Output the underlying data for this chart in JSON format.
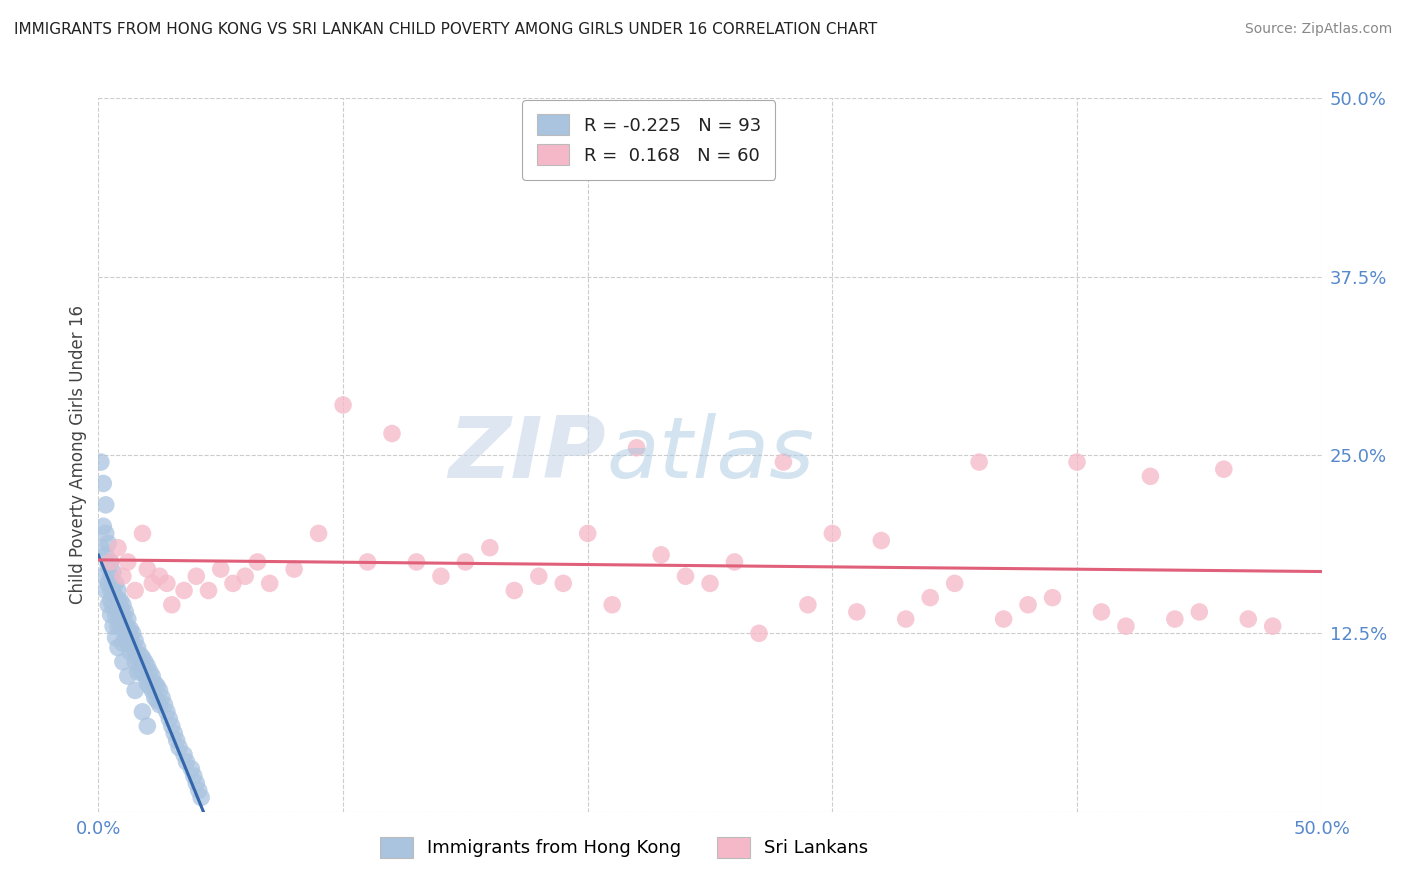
{
  "title": "IMMIGRANTS FROM HONG KONG VS SRI LANKAN CHILD POVERTY AMONG GIRLS UNDER 16 CORRELATION CHART",
  "source": "Source: ZipAtlas.com",
  "ylabel": "Child Poverty Among Girls Under 16",
  "xlim": [
    0,
    0.5
  ],
  "ylim": [
    0,
    0.5
  ],
  "ytick_positions": [
    0.0,
    0.125,
    0.25,
    0.375,
    0.5
  ],
  "xtick_positions": [
    0.0,
    0.1,
    0.2,
    0.3,
    0.4,
    0.5
  ],
  "hk_R": -0.225,
  "hk_N": 93,
  "sl_R": 0.168,
  "sl_N": 60,
  "hk_color": "#aac4df",
  "sl_color": "#f5b8c8",
  "hk_line_color": "#3366aa",
  "sl_line_color": "#e0607a",
  "watermark_zip": "ZIP",
  "watermark_atlas": "atlas",
  "background_color": "#ffffff",
  "grid_color": "#cccccc",
  "legend_label_hk": "Immigrants from Hong Kong",
  "legend_label_sl": "Sri Lankans",
  "axis_label_color": "#5588cc",
  "hk_scatter_x": [
    0.001,
    0.002,
    0.002,
    0.003,
    0.003,
    0.003,
    0.004,
    0.004,
    0.004,
    0.005,
    0.005,
    0.005,
    0.005,
    0.006,
    0.006,
    0.006,
    0.007,
    0.007,
    0.007,
    0.008,
    0.008,
    0.008,
    0.008,
    0.009,
    0.009,
    0.009,
    0.01,
    0.01,
    0.01,
    0.01,
    0.011,
    0.011,
    0.011,
    0.012,
    0.012,
    0.012,
    0.013,
    0.013,
    0.013,
    0.014,
    0.014,
    0.015,
    0.015,
    0.015,
    0.016,
    0.016,
    0.016,
    0.017,
    0.017,
    0.018,
    0.018,
    0.019,
    0.019,
    0.02,
    0.02,
    0.021,
    0.021,
    0.022,
    0.022,
    0.023,
    0.023,
    0.024,
    0.024,
    0.025,
    0.025,
    0.026,
    0.027,
    0.028,
    0.029,
    0.03,
    0.031,
    0.032,
    0.033,
    0.035,
    0.036,
    0.038,
    0.039,
    0.04,
    0.041,
    0.042,
    0.001,
    0.002,
    0.003,
    0.004,
    0.005,
    0.006,
    0.007,
    0.008,
    0.01,
    0.012,
    0.015,
    0.018,
    0.02
  ],
  "hk_scatter_y": [
    0.245,
    0.23,
    0.2,
    0.215,
    0.195,
    0.18,
    0.188,
    0.172,
    0.16,
    0.175,
    0.165,
    0.155,
    0.148,
    0.168,
    0.155,
    0.145,
    0.16,
    0.15,
    0.138,
    0.155,
    0.148,
    0.14,
    0.13,
    0.148,
    0.142,
    0.132,
    0.145,
    0.138,
    0.128,
    0.118,
    0.14,
    0.132,
    0.122,
    0.135,
    0.128,
    0.118,
    0.128,
    0.12,
    0.112,
    0.125,
    0.115,
    0.12,
    0.112,
    0.105,
    0.115,
    0.108,
    0.098,
    0.11,
    0.102,
    0.108,
    0.098,
    0.105,
    0.095,
    0.102,
    0.09,
    0.098,
    0.088,
    0.095,
    0.085,
    0.09,
    0.08,
    0.088,
    0.078,
    0.085,
    0.075,
    0.08,
    0.075,
    0.07,
    0.065,
    0.06,
    0.055,
    0.05,
    0.045,
    0.04,
    0.035,
    0.03,
    0.025,
    0.02,
    0.015,
    0.01,
    0.185,
    0.165,
    0.155,
    0.145,
    0.138,
    0.13,
    0.122,
    0.115,
    0.105,
    0.095,
    0.085,
    0.07,
    0.06
  ],
  "sl_scatter_x": [
    0.005,
    0.008,
    0.01,
    0.012,
    0.015,
    0.018,
    0.02,
    0.022,
    0.025,
    0.028,
    0.03,
    0.035,
    0.04,
    0.045,
    0.05,
    0.055,
    0.06,
    0.065,
    0.07,
    0.08,
    0.09,
    0.1,
    0.11,
    0.12,
    0.13,
    0.14,
    0.15,
    0.16,
    0.17,
    0.18,
    0.19,
    0.2,
    0.21,
    0.22,
    0.23,
    0.24,
    0.25,
    0.26,
    0.27,
    0.28,
    0.29,
    0.3,
    0.31,
    0.32,
    0.33,
    0.34,
    0.35,
    0.36,
    0.37,
    0.38,
    0.39,
    0.4,
    0.41,
    0.42,
    0.43,
    0.44,
    0.45,
    0.46,
    0.47,
    0.48
  ],
  "sl_scatter_y": [
    0.175,
    0.185,
    0.165,
    0.175,
    0.155,
    0.195,
    0.17,
    0.16,
    0.165,
    0.16,
    0.145,
    0.155,
    0.165,
    0.155,
    0.17,
    0.16,
    0.165,
    0.175,
    0.16,
    0.17,
    0.195,
    0.285,
    0.175,
    0.265,
    0.175,
    0.165,
    0.175,
    0.185,
    0.155,
    0.165,
    0.16,
    0.195,
    0.145,
    0.255,
    0.18,
    0.165,
    0.16,
    0.175,
    0.125,
    0.245,
    0.145,
    0.195,
    0.14,
    0.19,
    0.135,
    0.15,
    0.16,
    0.245,
    0.135,
    0.145,
    0.15,
    0.245,
    0.14,
    0.13,
    0.235,
    0.135,
    0.14,
    0.24,
    0.135,
    0.13
  ]
}
